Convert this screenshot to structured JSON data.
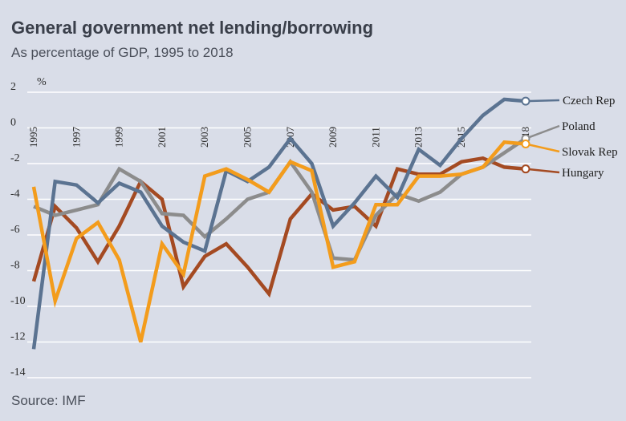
{
  "chart_data": {
    "type": "line",
    "title": "General government net lending/borrowing",
    "subtitle": "As percentage of GDP, 1995 to 2018",
    "ylabel": "%",
    "source": "Source: IMF",
    "ylim": [
      -14,
      2
    ],
    "yticks": [
      2,
      0,
      -2,
      -4,
      -6,
      -8,
      -10,
      -12,
      -14
    ],
    "x": [
      1995,
      1996,
      1997,
      1998,
      1999,
      2000,
      2001,
      2002,
      2003,
      2004,
      2005,
      2006,
      2007,
      2008,
      2009,
      2010,
      2011,
      2012,
      2013,
      2014,
      2015,
      2016,
      2017,
      2018
    ],
    "xtick_labels": [
      "1995",
      "1997",
      "1999",
      "2001",
      "2003",
      "2005",
      "2007",
      "2009",
      "2011",
      "2013",
      "2015",
      "2018"
    ],
    "xtick_years": [
      1995,
      1997,
      1999,
      2001,
      2003,
      2005,
      2007,
      2009,
      2011,
      2013,
      2015,
      2018
    ],
    "series": [
      {
        "name": "Czech Rep",
        "color": "#5b7391",
        "values": [
          -12.4,
          -3.0,
          -3.2,
          -4.2,
          -3.1,
          -3.6,
          -5.5,
          -6.4,
          -6.9,
          -2.4,
          -3.0,
          -2.2,
          -0.6,
          -2.0,
          -5.5,
          -4.2,
          -2.7,
          -3.9,
          -1.2,
          -2.1,
          -0.6,
          0.7,
          1.6,
          1.5
        ]
      },
      {
        "name": "Poland",
        "color": "#8c8c8c",
        "values": [
          -4.4,
          -4.9,
          -4.6,
          -4.3,
          -2.3,
          -3.0,
          -4.8,
          -4.9,
          -6.1,
          -5.1,
          -4.0,
          -3.6,
          -1.9,
          -3.6,
          -7.3,
          -7.4,
          -4.9,
          -3.7,
          -4.1,
          -3.6,
          -2.6,
          -2.2,
          -1.4,
          -0.6
        ]
      },
      {
        "name": "Slovak Rep",
        "color": "#f39c1c",
        "values": [
          -3.3,
          -9.7,
          -6.2,
          -5.3,
          -7.4,
          -12.0,
          -6.5,
          -8.2,
          -2.7,
          -2.3,
          -2.9,
          -3.6,
          -1.9,
          -2.4,
          -7.8,
          -7.5,
          -4.3,
          -4.3,
          -2.7,
          -2.7,
          -2.6,
          -2.2,
          -0.8,
          -0.9
        ]
      },
      {
        "name": "Hungary",
        "color": "#a44a22",
        "values": [
          -8.6,
          -4.4,
          -5.6,
          -7.5,
          -5.5,
          -3.0,
          -4.0,
          -8.9,
          -7.2,
          -6.5,
          -7.8,
          -9.3,
          -5.1,
          -3.7,
          -4.6,
          -4.4,
          -5.5,
          -2.3,
          -2.6,
          -2.6,
          -1.9,
          -1.7,
          -2.2,
          -2.3
        ]
      }
    ]
  }
}
